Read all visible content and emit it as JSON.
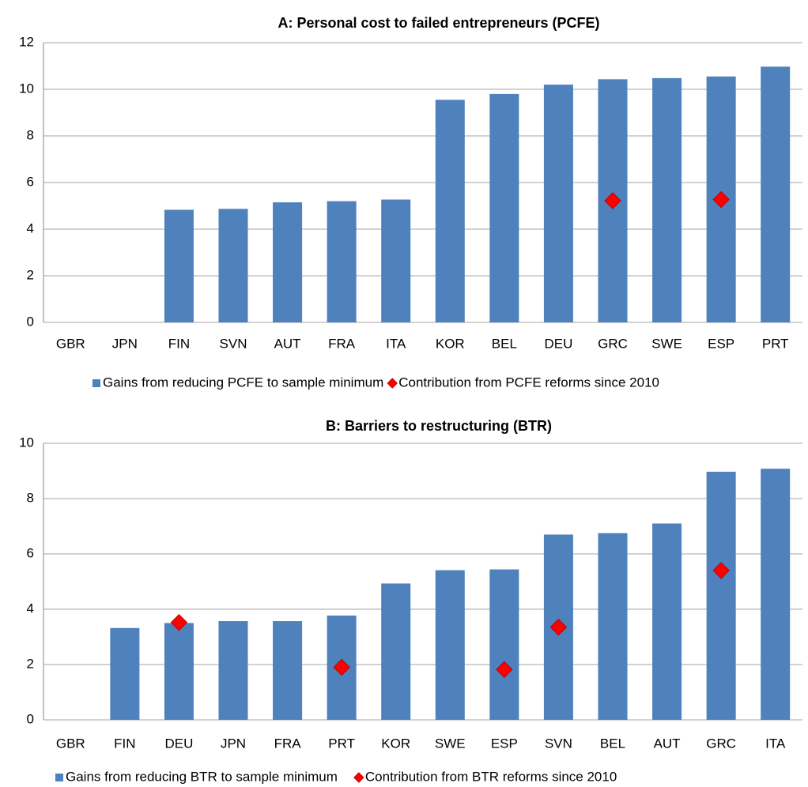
{
  "chart_data": [
    {
      "type": "bar",
      "title": "A: Personal cost to failed entrepreneurs (PCFE)",
      "categories": [
        "GBR",
        "JPN",
        "FIN",
        "SVN",
        "AUT",
        "FRA",
        "ITA",
        "KOR",
        "BEL",
        "DEU",
        "GRC",
        "SWE",
        "ESP",
        "PRT"
      ],
      "series": [
        {
          "name": "Gains from reducing PCFE to sample minimum",
          "color": "#4f81bd",
          "mark": "bar",
          "values": [
            0,
            0,
            4.83,
            4.87,
            5.15,
            5.2,
            5.27,
            9.55,
            9.8,
            10.2,
            10.43,
            10.48,
            10.55,
            10.97
          ]
        },
        {
          "name": "Contribution from PCFE reforms since 2010",
          "color": "#ff0000",
          "mark": "diamond",
          "values": [
            null,
            null,
            null,
            null,
            null,
            null,
            null,
            null,
            null,
            null,
            5.22,
            null,
            5.27,
            null
          ]
        }
      ],
      "ylim": [
        0,
        12
      ],
      "yticks": [
        0,
        2,
        4,
        6,
        8,
        10,
        12
      ],
      "grid": true
    },
    {
      "type": "bar",
      "title": "B: Barriers to restructuring (BTR)",
      "categories": [
        "GBR",
        "FIN",
        "DEU",
        "JPN",
        "FRA",
        "PRT",
        "KOR",
        "SWE",
        "ESP",
        "SVN",
        "BEL",
        "AUT",
        "GRC",
        "ITA"
      ],
      "series": [
        {
          "name": "Gains from reducing BTR to sample minimum",
          "color": "#4f81bd",
          "mark": "bar",
          "values": [
            0,
            3.32,
            3.5,
            3.57,
            3.57,
            3.77,
            4.93,
            5.41,
            5.44,
            6.7,
            6.75,
            7.1,
            8.97,
            9.08
          ]
        },
        {
          "name": "Contribution from BTR reforms since 2010",
          "color": "#ff0000",
          "mark": "diamond",
          "values": [
            null,
            null,
            3.52,
            null,
            null,
            1.9,
            null,
            null,
            1.82,
            3.35,
            null,
            null,
            5.4,
            null
          ]
        }
      ],
      "ylim": [
        0,
        10
      ],
      "yticks": [
        0,
        2,
        4,
        6,
        8,
        10
      ],
      "grid": true
    }
  ]
}
